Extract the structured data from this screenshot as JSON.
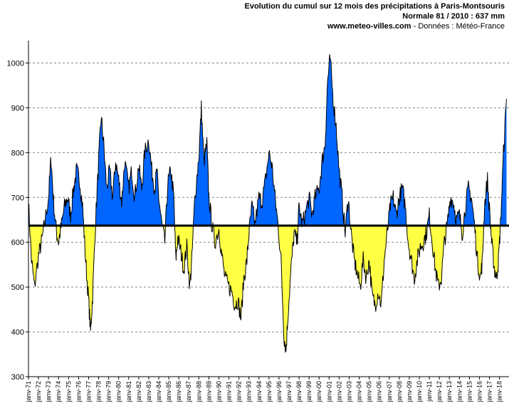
{
  "header": {
    "title": "Evolution du cumul sur 12 mois des précipitations à Paris-Montsouris",
    "normal_line": "Normale 81 / 2010 : 637 mm",
    "source_site": "www.meteo-villes.com",
    "source_rest": " - Données : Météo-France"
  },
  "chart_data": {
    "type": "area",
    "title": "Evolution du cumul sur 12 mois des précipitations à Paris-Montsouris",
    "subtitle": "Normale 81 / 2010 : 637 mm",
    "xlabel": "",
    "ylabel": "",
    "ylim": [
      300,
      1050
    ],
    "yticks": [
      300,
      400,
      500,
      600,
      700,
      800,
      900,
      1000
    ],
    "grid": "horizontal dashed",
    "baseline": 637,
    "colors": {
      "above": "#0066ff",
      "below": "#ffff44",
      "line": "#000000",
      "baseline": "#000000"
    },
    "x_labels": [
      "janv-71",
      "janv-72",
      "janv-73",
      "janv-74",
      "janv-75",
      "janv-76",
      "janv-77",
      "janv-78",
      "janv-79",
      "janv-80",
      "janv-81",
      "janv-82",
      "janv-83",
      "janv-84",
      "janv-85",
      "janv-86",
      "janv-87",
      "janv-88",
      "janv-89",
      "janv-90",
      "janv-91",
      "janv-92",
      "janv-93",
      "janv-94",
      "janv-95",
      "janv-96",
      "janv-97",
      "janv-98",
      "janv-99",
      "janv-00",
      "janv-01",
      "janv-02",
      "janv-03",
      "janv-04",
      "janv-05",
      "janv-06",
      "janv-07",
      "janv-08",
      "janv-09",
      "janv-10",
      "janv-11",
      "janv-12",
      "janv-13",
      "janv-14",
      "janv-15",
      "janv-16",
      "janv-17",
      "janv-18"
    ],
    "series": [
      {
        "values": [
          [
            1971.0,
            690
          ],
          [
            1971.3,
            560
          ],
          [
            1971.6,
            500
          ],
          [
            1972.0,
            570
          ],
          [
            1972.3,
            600
          ],
          [
            1972.6,
            640
          ],
          [
            1973.0,
            700
          ],
          [
            1973.25,
            790
          ],
          [
            1973.5,
            690
          ],
          [
            1973.8,
            620
          ],
          [
            1974.0,
            600
          ],
          [
            1974.3,
            640
          ],
          [
            1974.6,
            680
          ],
          [
            1974.9,
            700
          ],
          [
            1975.2,
            660
          ],
          [
            1975.5,
            720
          ],
          [
            1975.8,
            760
          ],
          [
            1976.1,
            740
          ],
          [
            1976.4,
            680
          ],
          [
            1976.7,
            560
          ],
          [
            1977.0,
            470
          ],
          [
            1977.2,
            400
          ],
          [
            1977.4,
            480
          ],
          [
            1977.7,
            650
          ],
          [
            1978.0,
            780
          ],
          [
            1978.25,
            880
          ],
          [
            1978.5,
            820
          ],
          [
            1978.8,
            720
          ],
          [
            1979.1,
            760
          ],
          [
            1979.4,
            700
          ],
          [
            1979.7,
            780
          ],
          [
            1980.0,
            740
          ],
          [
            1980.3,
            690
          ],
          [
            1980.6,
            780
          ],
          [
            1981.0,
            720
          ],
          [
            1981.3,
            760
          ],
          [
            1981.6,
            700
          ],
          [
            1982.0,
            770
          ],
          [
            1982.3,
            720
          ],
          [
            1982.6,
            800
          ],
          [
            1983.0,
            830
          ],
          [
            1983.3,
            760
          ],
          [
            1983.6,
            720
          ],
          [
            1983.8,
            760
          ],
          [
            1984.0,
            700
          ],
          [
            1984.3,
            640
          ],
          [
            1984.6,
            600
          ],
          [
            1984.9,
            730
          ],
          [
            1985.2,
            760
          ],
          [
            1985.5,
            700
          ],
          [
            1985.7,
            560
          ],
          [
            1985.9,
            610
          ],
          [
            1986.2,
            580
          ],
          [
            1986.5,
            540
          ],
          [
            1986.8,
            590
          ],
          [
            1987.1,
            500
          ],
          [
            1987.3,
            560
          ],
          [
            1987.6,
            700
          ],
          [
            1988.0,
            790
          ],
          [
            1988.25,
            900
          ],
          [
            1988.5,
            780
          ],
          [
            1988.8,
            820
          ],
          [
            1989.0,
            700
          ],
          [
            1989.3,
            640
          ],
          [
            1989.6,
            600
          ],
          [
            1990.0,
            630
          ],
          [
            1990.3,
            570
          ],
          [
            1990.6,
            520
          ],
          [
            1991.0,
            500
          ],
          [
            1991.3,
            490
          ],
          [
            1991.6,
            460
          ],
          [
            1991.9,
            470
          ],
          [
            1992.2,
            430
          ],
          [
            1992.5,
            520
          ],
          [
            1992.8,
            560
          ],
          [
            1993.0,
            620
          ],
          [
            1993.3,
            680
          ],
          [
            1993.6,
            640
          ],
          [
            1994.0,
            700
          ],
          [
            1994.3,
            690
          ],
          [
            1994.6,
            730
          ],
          [
            1995.0,
            800
          ],
          [
            1995.3,
            770
          ],
          [
            1995.6,
            700
          ],
          [
            1995.9,
            640
          ],
          [
            1996.2,
            560
          ],
          [
            1996.5,
            390
          ],
          [
            1996.7,
            360
          ],
          [
            1996.9,
            440
          ],
          [
            1997.2,
            540
          ],
          [
            1997.5,
            620
          ],
          [
            1997.8,
            600
          ],
          [
            1998.0,
            680
          ],
          [
            1998.3,
            640
          ],
          [
            1998.6,
            660
          ],
          [
            1999.0,
            700
          ],
          [
            1999.3,
            660
          ],
          [
            1999.6,
            700
          ],
          [
            2000.0,
            720
          ],
          [
            2000.3,
            780
          ],
          [
            2000.6,
            820
          ],
          [
            2000.85,
            960
          ],
          [
            2001.1,
            1010
          ],
          [
            2001.4,
            920
          ],
          [
            2001.7,
            860
          ],
          [
            2002.0,
            760
          ],
          [
            2002.3,
            700
          ],
          [
            2002.6,
            620
          ],
          [
            2002.9,
            700
          ],
          [
            2003.2,
            620
          ],
          [
            2003.5,
            560
          ],
          [
            2003.8,
            530
          ],
          [
            2004.1,
            500
          ],
          [
            2004.4,
            560
          ],
          [
            2004.7,
            520
          ],
          [
            2005.0,
            560
          ],
          [
            2005.3,
            480
          ],
          [
            2005.6,
            460
          ],
          [
            2005.9,
            490
          ],
          [
            2006.2,
            460
          ],
          [
            2006.5,
            560
          ],
          [
            2006.8,
            620
          ],
          [
            2007.1,
            680
          ],
          [
            2007.4,
            700
          ],
          [
            2007.7,
            660
          ],
          [
            2008.0,
            700
          ],
          [
            2008.3,
            720
          ],
          [
            2008.6,
            680
          ],
          [
            2008.9,
            600
          ],
          [
            2009.2,
            560
          ],
          [
            2009.5,
            520
          ],
          [
            2009.8,
            560
          ],
          [
            2010.1,
            590
          ],
          [
            2010.4,
            600
          ],
          [
            2010.7,
            620
          ],
          [
            2011.0,
            660
          ],
          [
            2011.3,
            600
          ],
          [
            2011.6,
            540
          ],
          [
            2011.9,
            500
          ],
          [
            2012.2,
            520
          ],
          [
            2012.5,
            600
          ],
          [
            2012.8,
            640
          ],
          [
            2013.1,
            700
          ],
          [
            2013.4,
            690
          ],
          [
            2013.7,
            650
          ],
          [
            2014.0,
            660
          ],
          [
            2014.3,
            620
          ],
          [
            2014.6,
            680
          ],
          [
            2014.9,
            720
          ],
          [
            2015.2,
            700
          ],
          [
            2015.5,
            640
          ],
          [
            2015.8,
            560
          ],
          [
            2016.1,
            520
          ],
          [
            2016.3,
            560
          ],
          [
            2016.5,
            680
          ],
          [
            2016.8,
            740
          ],
          [
            2017.1,
            640
          ],
          [
            2017.3,
            580
          ],
          [
            2017.5,
            540
          ],
          [
            2017.7,
            520
          ],
          [
            2017.9,
            560
          ],
          [
            2018.1,
            640
          ],
          [
            2018.4,
            800
          ],
          [
            2018.7,
            920
          ]
        ]
      }
    ]
  }
}
